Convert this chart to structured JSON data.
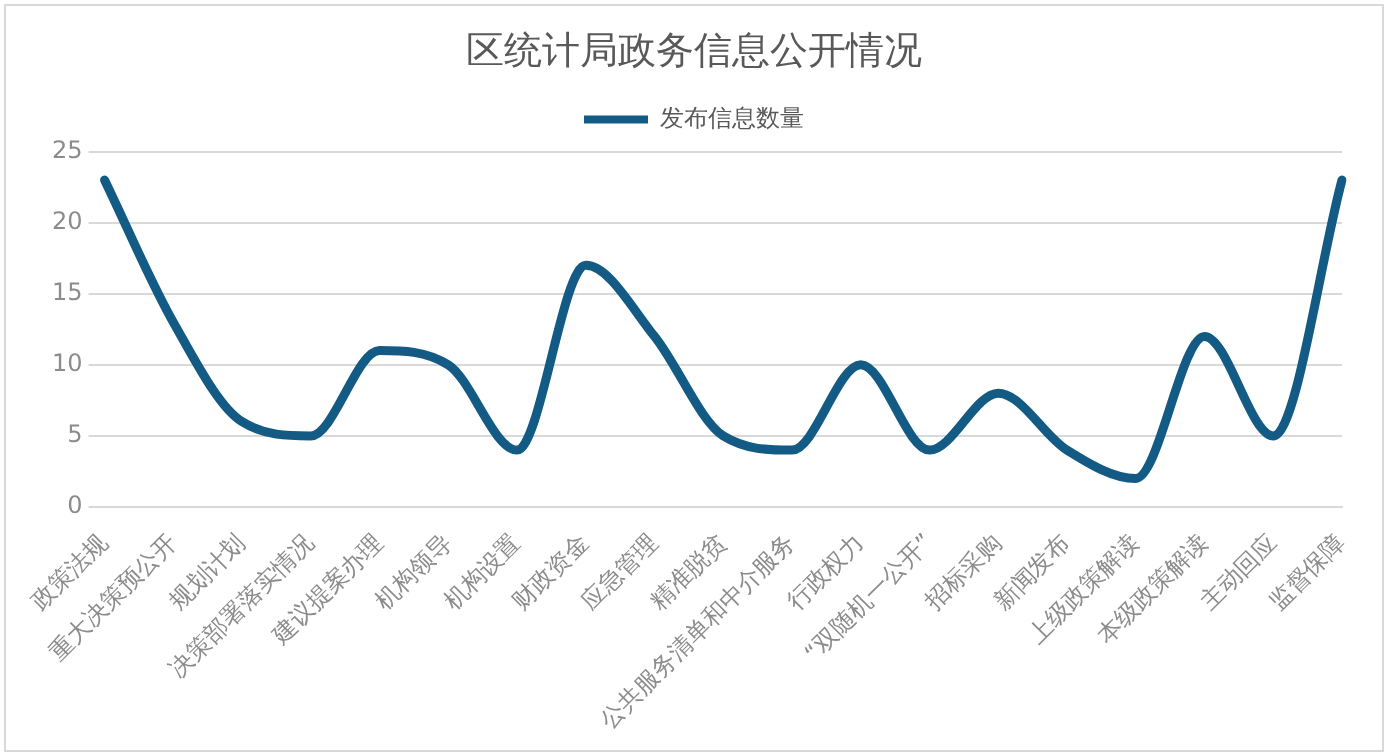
{
  "chart_data": {
    "type": "line",
    "title": "区统计局政务信息公开情况",
    "categories": [
      "政策法规",
      "重大决策预公开",
      "规划计划",
      "决策部署落实情况",
      "建议提案办理",
      "机构领导",
      "机构设置",
      "财政资金",
      "应急管理",
      "精准脱贫",
      "公共服务清单和中介服务",
      "行政权力",
      "“双随机一公开”",
      "招标采购",
      "新闻发布",
      "上级政策解读",
      "本级政策解读",
      "主动回应",
      "监督保障"
    ],
    "series": [
      {
        "name": "发布信息数量",
        "color": "#135b84",
        "values": [
          23,
          13,
          6,
          5,
          11,
          10,
          4,
          17,
          12,
          5,
          4,
          10,
          4,
          8,
          4,
          2,
          12,
          5,
          23
        ]
      }
    ],
    "ylim": [
      0,
      25
    ],
    "yticks": [
      0,
      5,
      10,
      15,
      20,
      25
    ],
    "grid": "y",
    "legend": "top",
    "marker": "none"
  }
}
